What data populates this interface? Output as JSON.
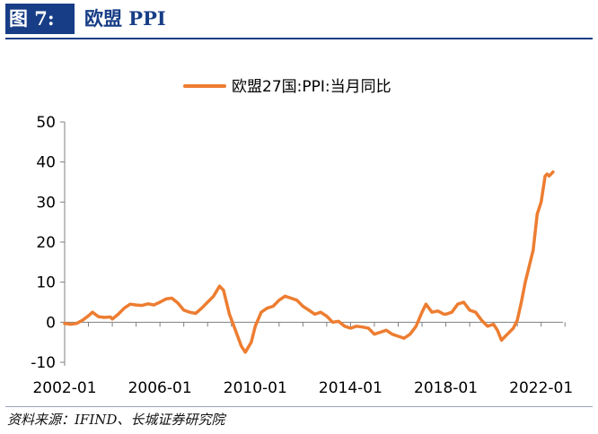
{
  "header": {
    "figure_label": "图 7:",
    "title": "欧盟 PPI"
  },
  "source": "资料来源：IFIND、长城证券研究院",
  "colors": {
    "series": "#ed7d31",
    "header_bg": "#173d86",
    "header_text": "#ffffff",
    "title_text": "#173d86",
    "axis": "#7f7f7f"
  },
  "chart_data": {
    "type": "line",
    "title": "",
    "xlabel": "",
    "ylabel": "",
    "legend_position": "top-center",
    "grid": false,
    "ylim": [
      -10,
      50
    ],
    "yticks": [
      "-10",
      "0",
      "10",
      "20",
      "30",
      "40",
      "50"
    ],
    "xticks": [
      "2002-01",
      "2006-01",
      "2010-01",
      "2014-01",
      "2018-01",
      "2022-01"
    ],
    "x_range": [
      "2002-01",
      "2022-12"
    ],
    "series": [
      {
        "name": "欧盟27国:PPI:当月同比",
        "color": "#ed7d31",
        "points": [
          [
            "2002-01",
            -0.3
          ],
          [
            "2002-04",
            -0.5
          ],
          [
            "2002-07",
            -0.3
          ],
          [
            "2002-10",
            0.5
          ],
          [
            "2003-01",
            1.6
          ],
          [
            "2003-03",
            2.5
          ],
          [
            "2003-06",
            1.4
          ],
          [
            "2003-09",
            1.2
          ],
          [
            "2003-12",
            1.3
          ],
          [
            "2004-01",
            0.8
          ],
          [
            "2004-04",
            2.0
          ],
          [
            "2004-07",
            3.5
          ],
          [
            "2004-10",
            4.5
          ],
          [
            "2005-01",
            4.3
          ],
          [
            "2005-04",
            4.2
          ],
          [
            "2005-07",
            4.6
          ],
          [
            "2005-10",
            4.3
          ],
          [
            "2006-01",
            5.0
          ],
          [
            "2006-04",
            5.8
          ],
          [
            "2006-07",
            6.0
          ],
          [
            "2006-10",
            4.8
          ],
          [
            "2007-01",
            3.0
          ],
          [
            "2007-04",
            2.5
          ],
          [
            "2007-07",
            2.2
          ],
          [
            "2007-10",
            3.5
          ],
          [
            "2008-01",
            5.0
          ],
          [
            "2008-04",
            6.5
          ],
          [
            "2008-07",
            9.0
          ],
          [
            "2008-09",
            8.0
          ],
          [
            "2008-12",
            2.0
          ],
          [
            "2009-03",
            -2.0
          ],
          [
            "2009-06",
            -6.0
          ],
          [
            "2009-08",
            -7.5
          ],
          [
            "2009-11",
            -5.0
          ],
          [
            "2010-01",
            -1.0
          ],
          [
            "2010-04",
            2.5
          ],
          [
            "2010-07",
            3.5
          ],
          [
            "2010-10",
            4.0
          ],
          [
            "2011-01",
            5.5
          ],
          [
            "2011-04",
            6.5
          ],
          [
            "2011-07",
            6.0
          ],
          [
            "2011-10",
            5.5
          ],
          [
            "2012-01",
            4.0
          ],
          [
            "2012-04",
            3.0
          ],
          [
            "2012-07",
            2.0
          ],
          [
            "2012-10",
            2.5
          ],
          [
            "2013-01",
            1.5
          ],
          [
            "2013-04",
            0.0
          ],
          [
            "2013-07",
            0.2
          ],
          [
            "2013-10",
            -1.0
          ],
          [
            "2014-01",
            -1.5
          ],
          [
            "2014-04",
            -1.0
          ],
          [
            "2014-07",
            -1.2
          ],
          [
            "2014-10",
            -1.5
          ],
          [
            "2015-01",
            -3.0
          ],
          [
            "2015-04",
            -2.5
          ],
          [
            "2015-07",
            -2.0
          ],
          [
            "2015-10",
            -3.0
          ],
          [
            "2016-01",
            -3.5
          ],
          [
            "2016-04",
            -4.0
          ],
          [
            "2016-07",
            -3.0
          ],
          [
            "2016-10",
            -1.0
          ],
          [
            "2017-01",
            2.5
          ],
          [
            "2017-03",
            4.5
          ],
          [
            "2017-06",
            2.5
          ],
          [
            "2017-09",
            2.8
          ],
          [
            "2017-12",
            2.0
          ],
          [
            "2018-01",
            2.0
          ],
          [
            "2018-04",
            2.5
          ],
          [
            "2018-07",
            4.5
          ],
          [
            "2018-10",
            5.0
          ],
          [
            "2019-01",
            3.0
          ],
          [
            "2019-04",
            2.5
          ],
          [
            "2019-07",
            0.5
          ],
          [
            "2019-10",
            -1.0
          ],
          [
            "2020-01",
            -0.5
          ],
          [
            "2020-03",
            -2.0
          ],
          [
            "2020-05",
            -4.5
          ],
          [
            "2020-08",
            -3.0
          ],
          [
            "2020-11",
            -1.5
          ],
          [
            "2021-01",
            0.5
          ],
          [
            "2021-03",
            5.0
          ],
          [
            "2021-05",
            10.0
          ],
          [
            "2021-07",
            14.0
          ],
          [
            "2021-09",
            18.0
          ],
          [
            "2021-11",
            27.0
          ],
          [
            "2022-01",
            30.0
          ],
          [
            "2022-03",
            36.5
          ],
          [
            "2022-04",
            37.0
          ],
          [
            "2022-05",
            36.5
          ],
          [
            "2022-06",
            37.0
          ],
          [
            "2022-07",
            37.5
          ]
        ]
      }
    ]
  }
}
